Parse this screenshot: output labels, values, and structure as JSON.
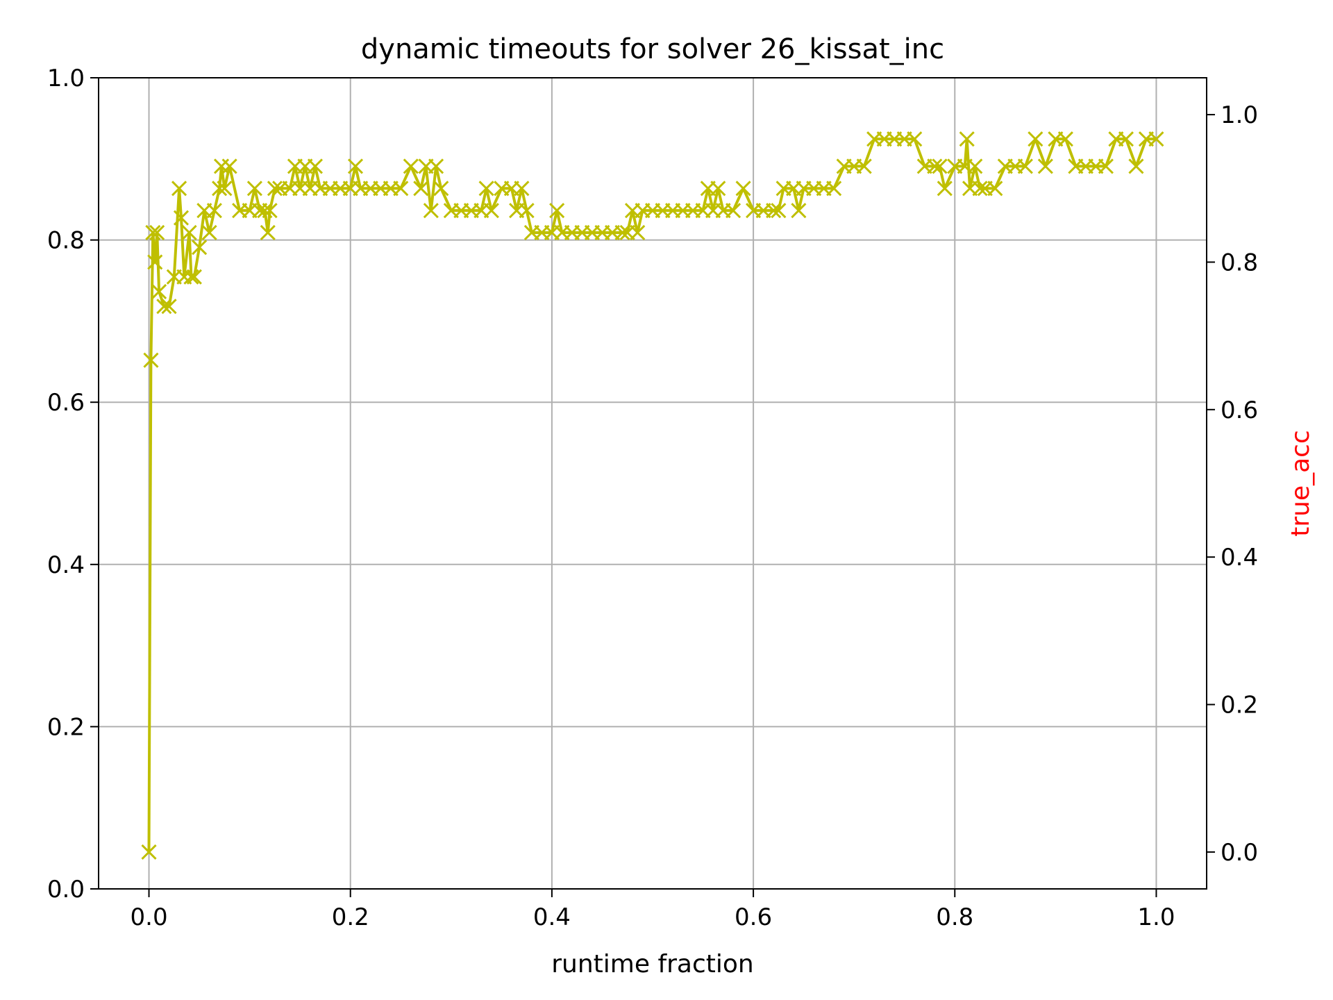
{
  "chart_data": {
    "type": "line",
    "title": "dynamic timeouts for solver 26_kissat_inc",
    "xlabel": "runtime fraction",
    "ylabel": "",
    "y2label": "true_acc",
    "xlim": [
      -0.05,
      1.05
    ],
    "ylim": [
      0.0,
      1.0
    ],
    "y2lim": [
      -0.05,
      1.05
    ],
    "xticks": [
      "0.0",
      "0.2",
      "0.4",
      "0.6",
      "0.8",
      "1.0"
    ],
    "yticks": [
      "0.0",
      "0.2",
      "0.4",
      "0.6",
      "0.8",
      "1.0"
    ],
    "y2ticks": [
      "0.0",
      "0.2",
      "0.4",
      "0.6",
      "0.8",
      "1.0"
    ],
    "grid": true,
    "marker": "x",
    "colors": {
      "series": "#bfbf00",
      "y2label": "#ff0000"
    },
    "series": [
      {
        "axis": "right",
        "x": [
          0.0,
          0.002,
          0.004,
          0.006,
          0.008,
          0.01,
          0.015,
          0.02,
          0.025,
          0.03,
          0.032,
          0.035,
          0.04,
          0.042,
          0.045,
          0.05,
          0.055,
          0.06,
          0.065,
          0.07,
          0.072,
          0.075,
          0.08,
          0.09,
          0.1,
          0.105,
          0.11,
          0.115,
          0.118,
          0.12,
          0.125,
          0.13,
          0.14,
          0.145,
          0.15,
          0.155,
          0.16,
          0.165,
          0.17,
          0.18,
          0.19,
          0.2,
          0.205,
          0.21,
          0.22,
          0.23,
          0.24,
          0.25,
          0.26,
          0.27,
          0.275,
          0.28,
          0.285,
          0.29,
          0.3,
          0.31,
          0.32,
          0.33,
          0.335,
          0.34,
          0.35,
          0.36,
          0.365,
          0.37,
          0.375,
          0.38,
          0.39,
          0.4,
          0.405,
          0.41,
          0.42,
          0.43,
          0.44,
          0.45,
          0.46,
          0.47,
          0.475,
          0.48,
          0.485,
          0.49,
          0.5,
          0.51,
          0.52,
          0.53,
          0.54,
          0.55,
          0.555,
          0.56,
          0.565,
          0.57,
          0.58,
          0.59,
          0.6,
          0.61,
          0.62,
          0.625,
          0.63,
          0.64,
          0.645,
          0.65,
          0.66,
          0.67,
          0.68,
          0.69,
          0.7,
          0.71,
          0.72,
          0.73,
          0.74,
          0.75,
          0.76,
          0.77,
          0.78,
          0.785,
          0.79,
          0.8,
          0.81,
          0.812,
          0.815,
          0.82,
          0.825,
          0.83,
          0.84,
          0.85,
          0.86,
          0.87,
          0.88,
          0.89,
          0.9,
          0.91,
          0.92,
          0.93,
          0.94,
          0.95,
          0.96,
          0.97,
          0.98,
          0.99,
          1.0
        ],
        "values": [
          0.0,
          0.667,
          0.84,
          0.8,
          0.84,
          0.76,
          0.74,
          0.74,
          0.78,
          0.9,
          0.86,
          0.78,
          0.84,
          0.78,
          0.78,
          0.82,
          0.87,
          0.84,
          0.87,
          0.9,
          0.93,
          0.9,
          0.93,
          0.87,
          0.87,
          0.9,
          0.87,
          0.87,
          0.84,
          0.87,
          0.9,
          0.9,
          0.9,
          0.93,
          0.9,
          0.93,
          0.9,
          0.93,
          0.9,
          0.9,
          0.9,
          0.9,
          0.93,
          0.9,
          0.9,
          0.9,
          0.9,
          0.9,
          0.93,
          0.9,
          0.93,
          0.87,
          0.93,
          0.9,
          0.87,
          0.87,
          0.87,
          0.87,
          0.9,
          0.87,
          0.9,
          0.9,
          0.87,
          0.9,
          0.87,
          0.84,
          0.84,
          0.84,
          0.87,
          0.84,
          0.84,
          0.84,
          0.84,
          0.84,
          0.84,
          0.84,
          0.84,
          0.87,
          0.84,
          0.87,
          0.87,
          0.87,
          0.87,
          0.87,
          0.87,
          0.87,
          0.9,
          0.87,
          0.9,
          0.87,
          0.87,
          0.9,
          0.87,
          0.87,
          0.87,
          0.87,
          0.9,
          0.9,
          0.87,
          0.9,
          0.9,
          0.9,
          0.9,
          0.93,
          0.93,
          0.93,
          0.967,
          0.967,
          0.967,
          0.967,
          0.967,
          0.93,
          0.93,
          0.93,
          0.9,
          0.93,
          0.93,
          0.967,
          0.9,
          0.93,
          0.9,
          0.9,
          0.9,
          0.93,
          0.93,
          0.93,
          0.967,
          0.93,
          0.967,
          0.967,
          0.93,
          0.93,
          0.93,
          0.93,
          0.967,
          0.967,
          0.93,
          0.967,
          0.967
        ]
      }
    ]
  }
}
